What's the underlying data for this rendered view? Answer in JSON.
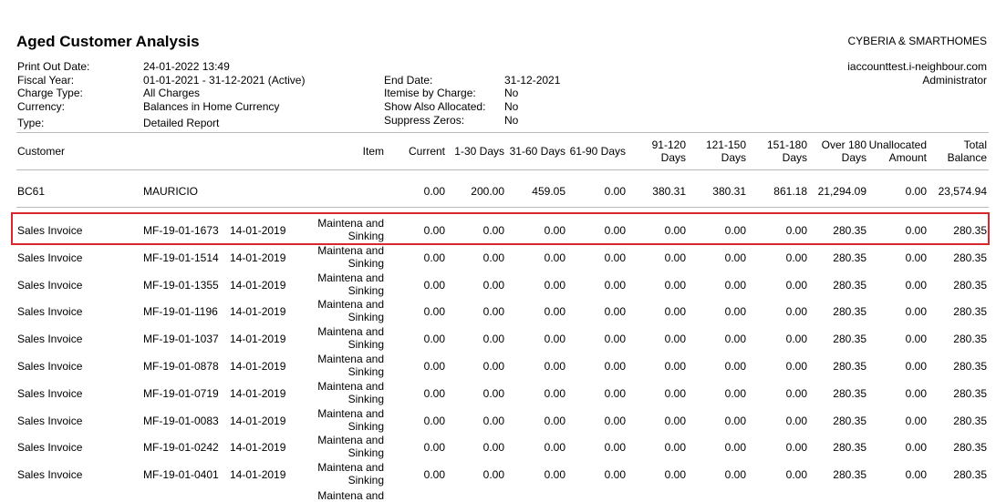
{
  "report": {
    "title": "Aged Customer Analysis",
    "company": "CYBERIA & SMARTHOMES",
    "site": "iaccounttest.i-neighbour.com",
    "user": "Administrator"
  },
  "meta_left": [
    {
      "label": "Print Out Date:",
      "value": "24-01-2022 13:49"
    },
    {
      "label": "Fiscal Year:",
      "value": "01-01-2021 - 31-12-2021 (Active)"
    },
    {
      "label": "Charge Type:",
      "value": "All Charges"
    },
    {
      "label": "Currency:",
      "value": "Balances in Home Currency"
    },
    {
      "label": "Type:",
      "value": "Detailed Report"
    }
  ],
  "meta_mid": [
    {
      "label": "End Date:",
      "value": "31-12-2021"
    },
    {
      "label": "Itemise by Charge:",
      "value": "No"
    },
    {
      "label": "Show Also Allocated:",
      "value": "No"
    },
    {
      "label": "Suppress Zeros:",
      "value": "No"
    }
  ],
  "columns": {
    "customer": "Customer",
    "item": "Item",
    "current": "Current",
    "d1_30": "1-30 Days",
    "d31_60": "31-60 Days",
    "d61_90": "61-90 Days",
    "d91_120_a": "91-120",
    "d91_120_b": "Days",
    "d121_150_a": "121-150",
    "d121_150_b": "Days",
    "d151_180_a": "151-180",
    "d151_180_b": "Days",
    "over180_a": "Over 180",
    "over180_b": "Days",
    "unalloc_a": "Unallocated",
    "unalloc_b": "Amount",
    "total_a": "Total",
    "total_b": "Balance"
  },
  "customer": {
    "code": "BC61",
    "name": "MAURICIO",
    "current": "0.00",
    "d1_30": "200.00",
    "d31_60": "459.05",
    "d61_90": "0.00",
    "d91_120": "380.31",
    "d121_150": "380.31",
    "d151_180": "861.18",
    "over180": "21,294.09",
    "unalloc": "0.00",
    "total": "23,574.94"
  },
  "rows": [
    {
      "type": "Sales Invoice",
      "ref": "MF-19-01-1673",
      "date": "14-01-2019",
      "item1": "Maintena and",
      "item2": "Sinking",
      "current": "0.00",
      "d1_30": "0.00",
      "d31_60": "0.00",
      "d61_90": "0.00",
      "d91_120": "0.00",
      "d121_150": "0.00",
      "d151_180": "0.00",
      "over180": "280.35",
      "unalloc": "0.00",
      "total": "280.35"
    },
    {
      "type": "Sales Invoice",
      "ref": "MF-19-01-1514",
      "date": "14-01-2019",
      "item1": "Maintena and",
      "item2": "Sinking",
      "current": "0.00",
      "d1_30": "0.00",
      "d31_60": "0.00",
      "d61_90": "0.00",
      "d91_120": "0.00",
      "d121_150": "0.00",
      "d151_180": "0.00",
      "over180": "280.35",
      "unalloc": "0.00",
      "total": "280.35"
    },
    {
      "type": "Sales Invoice",
      "ref": "MF-19-01-1355",
      "date": "14-01-2019",
      "item1": "Maintena and",
      "item2": "Sinking",
      "current": "0.00",
      "d1_30": "0.00",
      "d31_60": "0.00",
      "d61_90": "0.00",
      "d91_120": "0.00",
      "d121_150": "0.00",
      "d151_180": "0.00",
      "over180": "280.35",
      "unalloc": "0.00",
      "total": "280.35"
    },
    {
      "type": "Sales Invoice",
      "ref": "MF-19-01-1196",
      "date": "14-01-2019",
      "item1": "Maintena and",
      "item2": "Sinking",
      "current": "0.00",
      "d1_30": "0.00",
      "d31_60": "0.00",
      "d61_90": "0.00",
      "d91_120": "0.00",
      "d121_150": "0.00",
      "d151_180": "0.00",
      "over180": "280.35",
      "unalloc": "0.00",
      "total": "280.35"
    },
    {
      "type": "Sales Invoice",
      "ref": "MF-19-01-1037",
      "date": "14-01-2019",
      "item1": "Maintena and",
      "item2": "Sinking",
      "current": "0.00",
      "d1_30": "0.00",
      "d31_60": "0.00",
      "d61_90": "0.00",
      "d91_120": "0.00",
      "d121_150": "0.00",
      "d151_180": "0.00",
      "over180": "280.35",
      "unalloc": "0.00",
      "total": "280.35"
    },
    {
      "type": "Sales Invoice",
      "ref": "MF-19-01-0878",
      "date": "14-01-2019",
      "item1": "Maintena and",
      "item2": "Sinking",
      "current": "0.00",
      "d1_30": "0.00",
      "d31_60": "0.00",
      "d61_90": "0.00",
      "d91_120": "0.00",
      "d121_150": "0.00",
      "d151_180": "0.00",
      "over180": "280.35",
      "unalloc": "0.00",
      "total": "280.35"
    },
    {
      "type": "Sales Invoice",
      "ref": "MF-19-01-0719",
      "date": "14-01-2019",
      "item1": "Maintena and",
      "item2": "Sinking",
      "current": "0.00",
      "d1_30": "0.00",
      "d31_60": "0.00",
      "d61_90": "0.00",
      "d91_120": "0.00",
      "d121_150": "0.00",
      "d151_180": "0.00",
      "over180": "280.35",
      "unalloc": "0.00",
      "total": "280.35"
    },
    {
      "type": "Sales Invoice",
      "ref": "MF-19-01-0083",
      "date": "14-01-2019",
      "item1": "Maintena and",
      "item2": "Sinking",
      "current": "0.00",
      "d1_30": "0.00",
      "d31_60": "0.00",
      "d61_90": "0.00",
      "d91_120": "0.00",
      "d121_150": "0.00",
      "d151_180": "0.00",
      "over180": "280.35",
      "unalloc": "0.00",
      "total": "280.35"
    },
    {
      "type": "Sales Invoice",
      "ref": "MF-19-01-0242",
      "date": "14-01-2019",
      "item1": "Maintena and",
      "item2": "Sinking",
      "current": "0.00",
      "d1_30": "0.00",
      "d31_60": "0.00",
      "d61_90": "0.00",
      "d91_120": "0.00",
      "d121_150": "0.00",
      "d151_180": "0.00",
      "over180": "280.35",
      "unalloc": "0.00",
      "total": "280.35"
    },
    {
      "type": "Sales Invoice",
      "ref": "MF-19-01-0401",
      "date": "14-01-2019",
      "item1": "Maintena and",
      "item2": "Sinking",
      "current": "0.00",
      "d1_30": "0.00",
      "d31_60": "0.00",
      "d61_90": "0.00",
      "d91_120": "0.00",
      "d121_150": "0.00",
      "d151_180": "0.00",
      "over180": "280.35",
      "unalloc": "0.00",
      "total": "280.35"
    }
  ],
  "partial_row": {
    "item1": "Maintena and"
  },
  "highlight_color": "#d9272e"
}
